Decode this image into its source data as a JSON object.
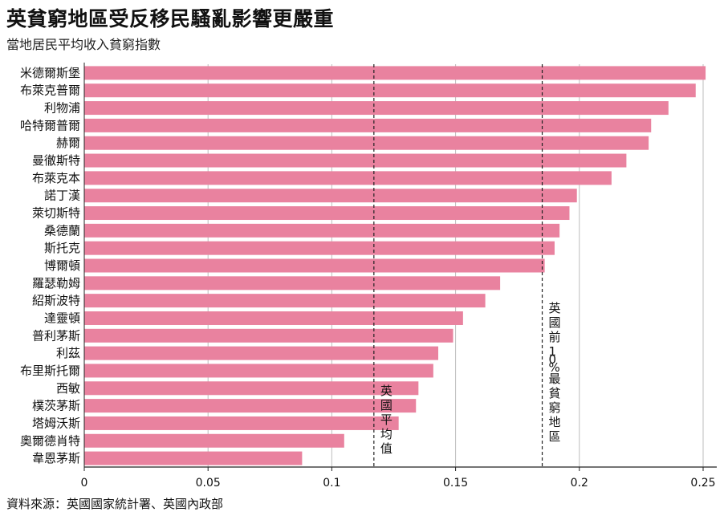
{
  "chart_data": {
    "type": "bar",
    "orientation": "horizontal",
    "title": "英貧窮地區受反移民騷亂影響更嚴重",
    "subtitle": "當地居民平均收入貧窮指數",
    "categories": [
      "米德爾斯堡",
      "布萊克普爾",
      "利物浦",
      "哈特爾普爾",
      "赫爾",
      "曼徹斯特",
      "布萊克本",
      "諾丁漢",
      "萊切斯特",
      "桑德蘭",
      "斯托克",
      "博爾頓",
      "羅瑟勒姆",
      "紹斯波特",
      "達靈頓",
      "普利茅斯",
      "利茲",
      "布里斯托爾",
      "西敏",
      "樸茨茅斯",
      "塔姆沃斯",
      "奧爾德肖特",
      "韋恩茅斯"
    ],
    "values": [
      0.251,
      0.247,
      0.236,
      0.229,
      0.228,
      0.219,
      0.213,
      0.199,
      0.196,
      0.192,
      0.19,
      0.186,
      0.168,
      0.162,
      0.153,
      0.149,
      0.143,
      0.141,
      0.135,
      0.134,
      0.127,
      0.105,
      0.088
    ],
    "xlim": [
      0,
      0.26
    ],
    "xticks": [
      0,
      0.05,
      0.1,
      0.15,
      0.2,
      0.25
    ],
    "xtick_labels": [
      "0",
      "0.05",
      "0.1",
      "0.15",
      "0.2",
      "0.25"
    ],
    "grid": "vertical",
    "bar_color": "#e9829f",
    "reference_lines": [
      {
        "label": "英國平均值",
        "value": 0.117,
        "style": "dashed"
      },
      {
        "label": "英國前10%最貧窮地區",
        "value": 0.185,
        "style": "dashed"
      }
    ]
  },
  "source": "資料來源：英國國家統計署、英國內政部"
}
